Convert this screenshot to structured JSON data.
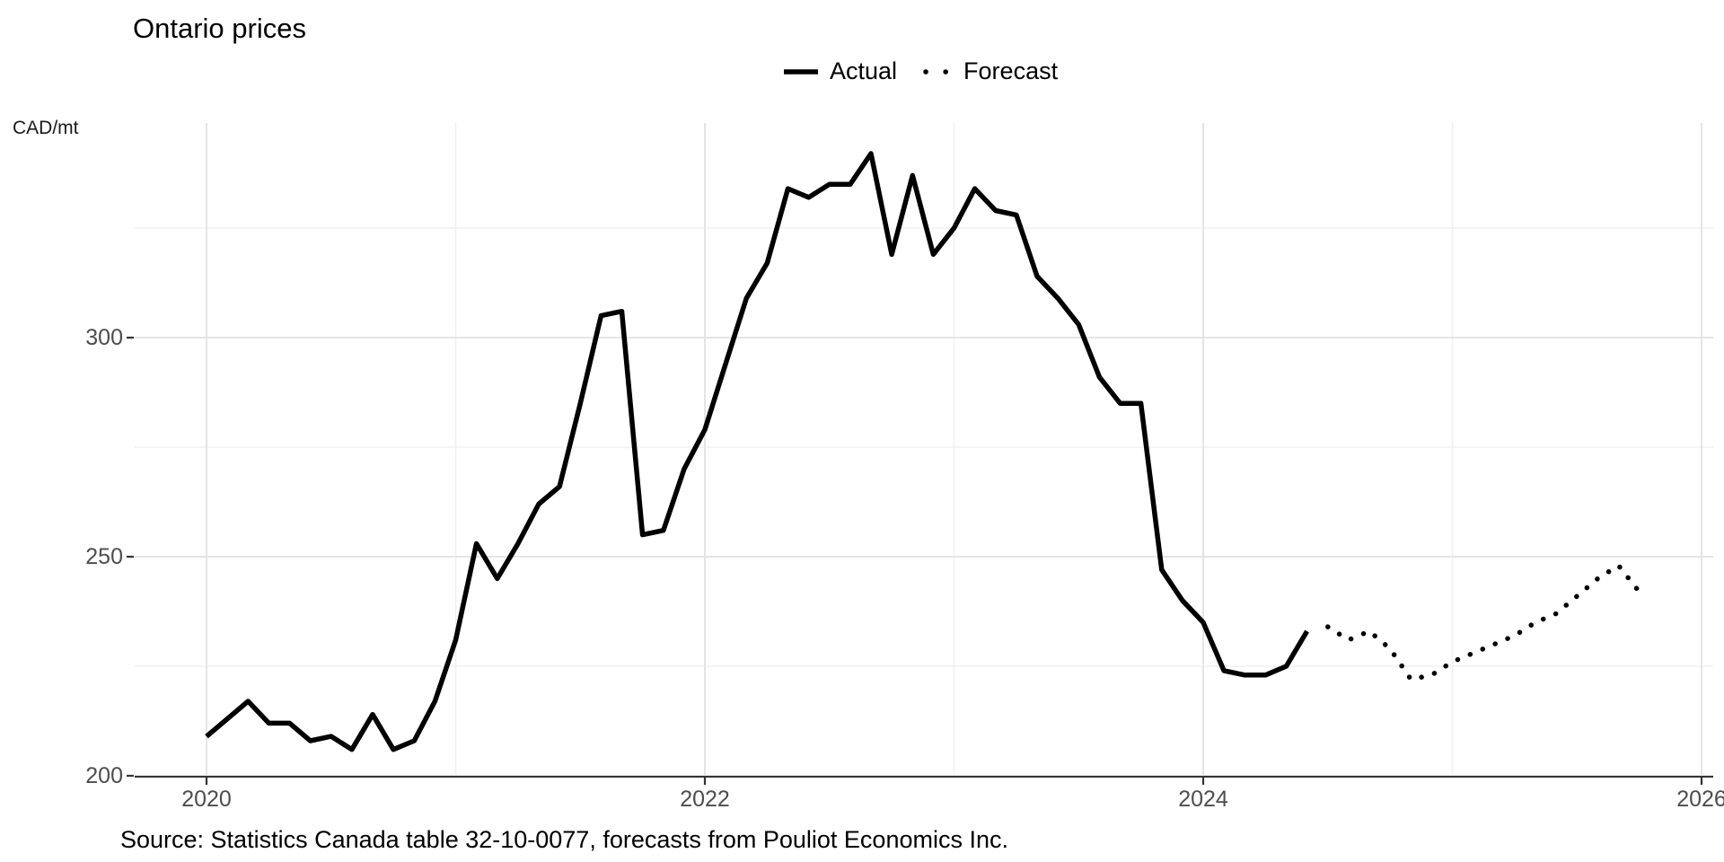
{
  "colors": {
    "series": "#000000",
    "tick_text": "#4d4d4d",
    "grid_major": "#e5e5e5",
    "grid_minor": "#f0f0f0",
    "axis_line": "#333333",
    "background": "#ffffff"
  },
  "chart_data": {
    "type": "line",
    "title": "Ontario prices",
    "unit_label": "CAD/mt",
    "source_note": "Source: Statistics Canada table 32-10-0077, forecasts from Pouliot Economics Inc.",
    "legend_position": "top",
    "grid": true,
    "xlabel": "",
    "ylabel": "CAD/mt",
    "x_range_years": [
      2020,
      2026
    ],
    "ylim": [
      199,
      349
    ],
    "axes": {
      "y_ticks": [
        {
          "value": 200,
          "label": "200"
        },
        {
          "value": 250,
          "label": "250"
        },
        {
          "value": 300,
          "label": "300"
        }
      ],
      "y_minor": [
        225,
        275,
        325
      ],
      "x_ticks": [
        {
          "year": 2020,
          "label": "2020"
        },
        {
          "year": 2022,
          "label": "2022"
        },
        {
          "year": 2024,
          "label": "2024"
        },
        {
          "year": 2026,
          "label": "2026"
        }
      ],
      "x_minor": [
        2021,
        2023,
        2025
      ]
    },
    "series": [
      {
        "name": "Actual",
        "style": "solid",
        "start": "2020-01",
        "frequency": "monthly",
        "values": [
          209,
          213,
          217,
          212,
          212,
          208,
          209,
          206,
          214,
          206,
          208,
          217,
          231,
          253,
          245,
          253,
          262,
          266,
          285,
          305,
          306,
          255,
          256,
          270,
          279,
          294,
          309,
          317,
          334,
          332,
          335,
          335,
          342,
          319,
          337,
          319,
          325,
          334,
          329,
          328,
          314,
          309,
          303,
          291,
          285,
          285,
          247,
          240,
          235,
          224,
          223,
          223,
          225,
          233
        ]
      },
      {
        "name": "Forecast",
        "style": "dotted",
        "start": "2024-07",
        "frequency": "monthly",
        "values": [
          234,
          231,
          233,
          229,
          222,
          223,
          226,
          228,
          230,
          232,
          235,
          237,
          241,
          245,
          248,
          242
        ]
      }
    ]
  }
}
